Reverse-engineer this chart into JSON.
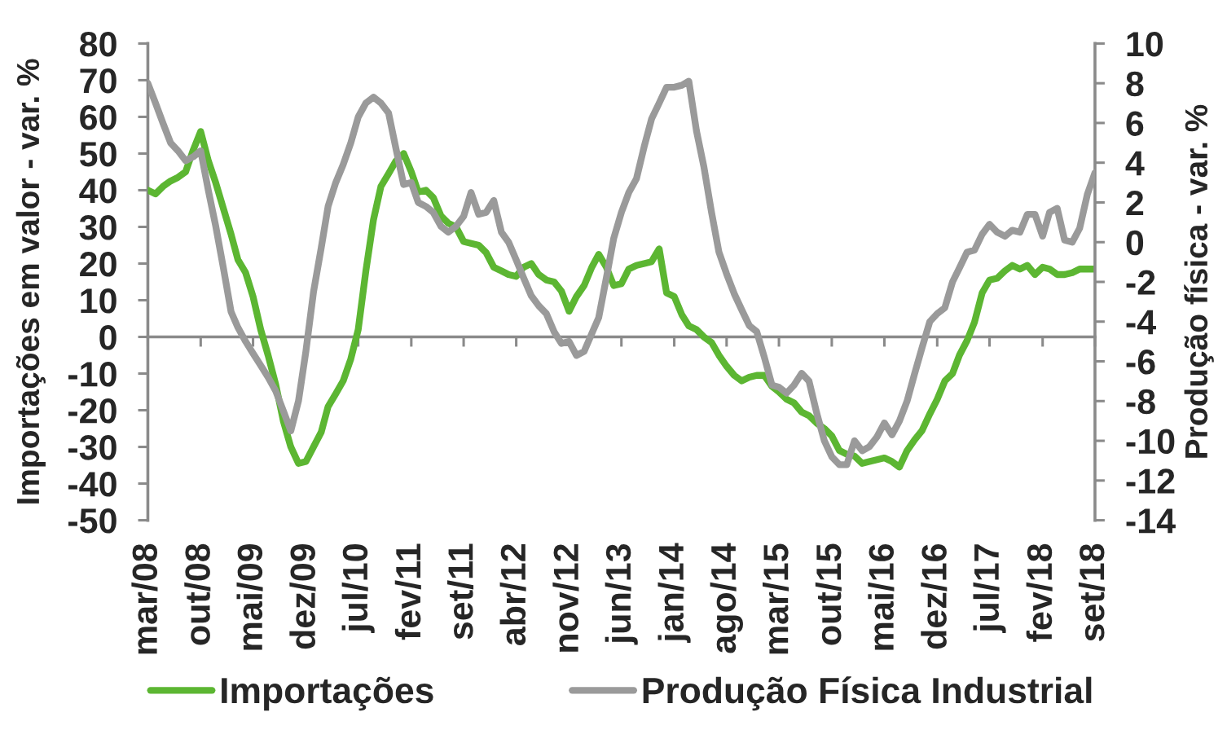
{
  "chart_data": {
    "type": "line",
    "ylabel": "Importações em valor - var. %",
    "y2label": "Produção física - var. %",
    "x": [
      "2008-03",
      "2008-04",
      "2008-05",
      "2008-06",
      "2008-07",
      "2008-08",
      "2008-09",
      "2008-10",
      "2008-11",
      "2008-12",
      "2009-01",
      "2009-02",
      "2009-03",
      "2009-04",
      "2009-05",
      "2009-06",
      "2009-07",
      "2009-08",
      "2009-09",
      "2009-10",
      "2009-11",
      "2009-12",
      "2010-01",
      "2010-02",
      "2010-03",
      "2010-04",
      "2010-05",
      "2010-06",
      "2010-07",
      "2010-08",
      "2010-09",
      "2010-10",
      "2010-11",
      "2010-12",
      "2011-01",
      "2011-02",
      "2011-03",
      "2011-04",
      "2011-05",
      "2011-06",
      "2011-07",
      "2011-08",
      "2011-09",
      "2011-10",
      "2011-11",
      "2011-12",
      "2012-01",
      "2012-02",
      "2012-03",
      "2012-04",
      "2012-05",
      "2012-06",
      "2012-07",
      "2012-08",
      "2012-09",
      "2012-10",
      "2012-11",
      "2012-12",
      "2013-01",
      "2013-02",
      "2013-03",
      "2013-04",
      "2013-05",
      "2013-06",
      "2013-07",
      "2013-08",
      "2013-09",
      "2013-10",
      "2013-11",
      "2013-12",
      "2014-01",
      "2014-02",
      "2014-03",
      "2014-04",
      "2014-05",
      "2014-06",
      "2014-07",
      "2014-08",
      "2014-09",
      "2014-10",
      "2014-11",
      "2014-12",
      "2015-01",
      "2015-02",
      "2015-03",
      "2015-04",
      "2015-05",
      "2015-06",
      "2015-07",
      "2015-08",
      "2015-09",
      "2015-10",
      "2015-11",
      "2015-12",
      "2016-01",
      "2016-02",
      "2016-03",
      "2016-04",
      "2016-05",
      "2016-06",
      "2016-07",
      "2016-08",
      "2016-09",
      "2016-10",
      "2016-11",
      "2016-12",
      "2017-01",
      "2017-02",
      "2017-03",
      "2017-04",
      "2017-05",
      "2017-06",
      "2017-07",
      "2017-08",
      "2017-09",
      "2017-10",
      "2017-11",
      "2017-12",
      "2018-01",
      "2018-02",
      "2018-03",
      "2018-04",
      "2018-05",
      "2018-06",
      "2018-07",
      "2018-08",
      "2018-09"
    ],
    "xlim": [
      "2008-03",
      "2018-09"
    ],
    "xticks": [
      {
        "value": "2008-03",
        "label": "mar/08"
      },
      {
        "value": "2008-10",
        "label": "out/08"
      },
      {
        "value": "2009-05",
        "label": "mai/09"
      },
      {
        "value": "2009-12",
        "label": "dez/09"
      },
      {
        "value": "2010-07",
        "label": "jul/10"
      },
      {
        "value": "2011-02",
        "label": "fev/11"
      },
      {
        "value": "2011-09",
        "label": "set/11"
      },
      {
        "value": "2012-04",
        "label": "abr/12"
      },
      {
        "value": "2012-11",
        "label": "nov/12"
      },
      {
        "value": "2013-06",
        "label": "jun/13"
      },
      {
        "value": "2014-01",
        "label": "jan/14"
      },
      {
        "value": "2014-08",
        "label": "ago/14"
      },
      {
        "value": "2015-03",
        "label": "mar/15"
      },
      {
        "value": "2015-10",
        "label": "out/15"
      },
      {
        "value": "2016-05",
        "label": "mai/16"
      },
      {
        "value": "2016-12",
        "label": "dez/16"
      },
      {
        "value": "2017-07",
        "label": "jul/17"
      },
      {
        "value": "2018-02",
        "label": "fev/18"
      },
      {
        "value": "2018-09",
        "label": "set/18"
      }
    ],
    "ylim": [
      -50,
      80
    ],
    "yticks": [
      -50,
      -40,
      -30,
      -20,
      -10,
      0,
      10,
      20,
      30,
      40,
      50,
      60,
      70,
      80
    ],
    "y2lim": [
      -14,
      10
    ],
    "y2ticks": [
      -14,
      -12,
      -10,
      -8,
      -6,
      -4,
      -2,
      0,
      2,
      4,
      6,
      8,
      10
    ],
    "series": [
      {
        "name": "Importações",
        "color": "#5cb632",
        "values": [
          40,
          39,
          41,
          42.5,
          43.5,
          45,
          51,
          56,
          48,
          42,
          35,
          28,
          21,
          17.5,
          11,
          2,
          -5,
          -13,
          -23,
          -30,
          -34.5,
          -34,
          -30,
          -26,
          -19,
          -15.5,
          -12,
          -6,
          2,
          18,
          32,
          41,
          44.5,
          48,
          50,
          45,
          39.5,
          40,
          38,
          33,
          31,
          30,
          26,
          25.5,
          25,
          23,
          19,
          18,
          17,
          16.5,
          19,
          20,
          17,
          15.5,
          15,
          12.5,
          7,
          11,
          14,
          19,
          22.5,
          19,
          14,
          14.5,
          18.5,
          19.5,
          20,
          20.5,
          24,
          12,
          11,
          6,
          3,
          2,
          0,
          -1.5,
          -5,
          -8,
          -10.5,
          -12,
          -11,
          -10.5,
          -10.5,
          -13.5,
          -15,
          -17,
          -18,
          -20.5,
          -21.5,
          -23.5,
          -25,
          -27,
          -31,
          -32,
          -32.5,
          -34.5,
          -34,
          -33.5,
          -33,
          -34,
          -35.5,
          -31,
          -28,
          -25.5,
          -21,
          -17,
          -12,
          -10,
          -5,
          -1,
          4,
          12,
          15.5,
          16,
          18,
          19.5,
          18.5,
          19.5,
          17,
          19,
          18.5,
          17,
          17,
          17.5,
          18.5,
          18.5,
          18.5
        ]
      },
      {
        "name": "Produção Física Industrial",
        "color": "#9a9a9a",
        "axis": "y2",
        "values": [
          8,
          7,
          6,
          5,
          4.6,
          4.1,
          4.3,
          4.6,
          2.6,
          0.8,
          -1.3,
          -3.5,
          -4.3,
          -5,
          -5.6,
          -6.2,
          -6.8,
          -7.5,
          -8.5,
          -9.5,
          -8,
          -5.5,
          -2.5,
          -0.3,
          1.8,
          3,
          3.9,
          5,
          6.3,
          7,
          7.3,
          7,
          6.5,
          4.7,
          2.9,
          3,
          2,
          1.8,
          1.5,
          0.8,
          0.5,
          0.8,
          1.3,
          2.5,
          1.4,
          1.5,
          2.1,
          0.5,
          0,
          -0.9,
          -1.8,
          -2.7,
          -3.2,
          -3.6,
          -4.5,
          -5.1,
          -5,
          -5.7,
          -5.5,
          -4.6,
          -3.8,
          -1.8,
          0.2,
          1.5,
          2.5,
          3.2,
          4.8,
          6.2,
          7,
          7.8,
          7.8,
          7.9,
          8.1,
          5.6,
          3.8,
          1.5,
          -0.5,
          -1.6,
          -2.6,
          -3.4,
          -4.2,
          -4.5,
          -5.8,
          -7.2,
          -7.3,
          -7.6,
          -7.2,
          -6.6,
          -7,
          -8.6,
          -10,
          -10.8,
          -11.2,
          -11.2,
          -10,
          -10.5,
          -10.3,
          -9.8,
          -9.1,
          -9.7,
          -9,
          -8,
          -6.6,
          -5.3,
          -4,
          -3.6,
          -3.3,
          -2,
          -1.3,
          -0.5,
          -0.4,
          0.4,
          0.9,
          0.5,
          0.3,
          0.6,
          0.5,
          1.4,
          1.4,
          0.3,
          1.5,
          1.7,
          0.1,
          0,
          0.7,
          2.4,
          3.5
        ]
      }
    ],
    "legend": "bottom",
    "line_style": "solid"
  }
}
